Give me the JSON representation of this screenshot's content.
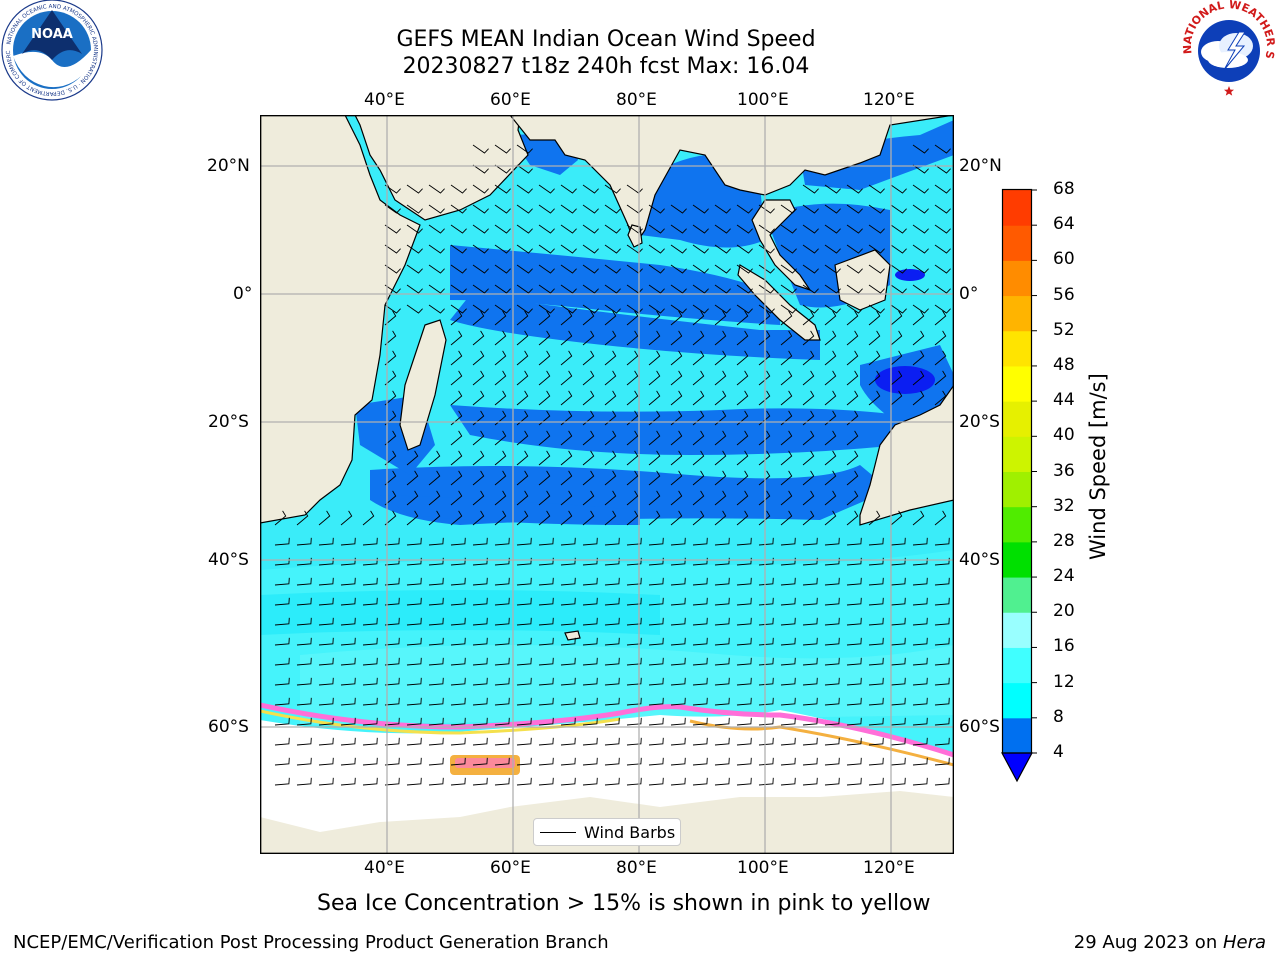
{
  "title": {
    "line1": "GEFS MEAN Indian Ocean Wind Speed",
    "line2": "20230827 t18z 240h fcst   Max: 16.04"
  },
  "map": {
    "lon_top_labels": [
      "40°E",
      "60°E",
      "80°E",
      "100°E",
      "120°E"
    ],
    "lon_bottom_labels": [
      "40°E",
      "60°E",
      "80°E",
      "100°E",
      "120°E"
    ],
    "lat_left_labels": [
      "20°N",
      "0°",
      "20°S",
      "40°S",
      "60°S"
    ],
    "lat_right_labels": [
      "20°N",
      "0°",
      "20°S",
      "40°S",
      "60°S"
    ],
    "ocean_base_color": "#3aecf9",
    "land_color": "#efecdc",
    "ice_shelf_color": "#ffffff",
    "grid_color": "#b0b0b0"
  },
  "legend": {
    "label": "Wind Barbs"
  },
  "colorbar": {
    "label": "Wind Speed [m/s]",
    "ticks": [
      "4",
      "8",
      "12",
      "16",
      "20",
      "24",
      "28",
      "32",
      "36",
      "40",
      "44",
      "48",
      "52",
      "56",
      "60",
      "64",
      "68"
    ],
    "colors": [
      "#0070f0",
      "#00ffff",
      "#40ffff",
      "#99ffff",
      "#50f090",
      "#00e000",
      "#50ec00",
      "#a0f000",
      "#cdf400",
      "#e6f000",
      "#ffff00",
      "#ffe400",
      "#ffb400",
      "#ff8c00",
      "#ff5a00",
      "#ff3c00",
      "#ff0000"
    ],
    "under_color": "#0000ff"
  },
  "chart_data": {
    "type": "heatmap",
    "variable": "Wind Speed [m/s]",
    "max": 16.04,
    "levels": [
      4,
      8,
      12,
      16,
      20,
      24,
      28,
      32,
      36,
      40,
      44,
      48,
      52,
      56,
      60,
      64,
      68
    ],
    "lon_ticks": [
      40,
      60,
      80,
      100,
      120
    ],
    "lat_ticks": [
      20,
      0,
      -20,
      -40,
      -60
    ]
  },
  "note": "Sea Ice Concentration > 15% is shown in pink to yellow",
  "footer": {
    "left": "NCEP/EMC/Verification Post Processing Product Generation Branch",
    "right_date": "29 Aug 2023 on ",
    "right_machine": "Hera"
  },
  "logos": {
    "noaa": "NOAA",
    "noaa_ring": "NATIONAL OCEANIC AND ATMOSPHERIC ADMINISTRATION · U.S. DEPARTMENT OF COMMERCE",
    "nws_ring": "NATIONAL WEATHER SERVICE"
  }
}
